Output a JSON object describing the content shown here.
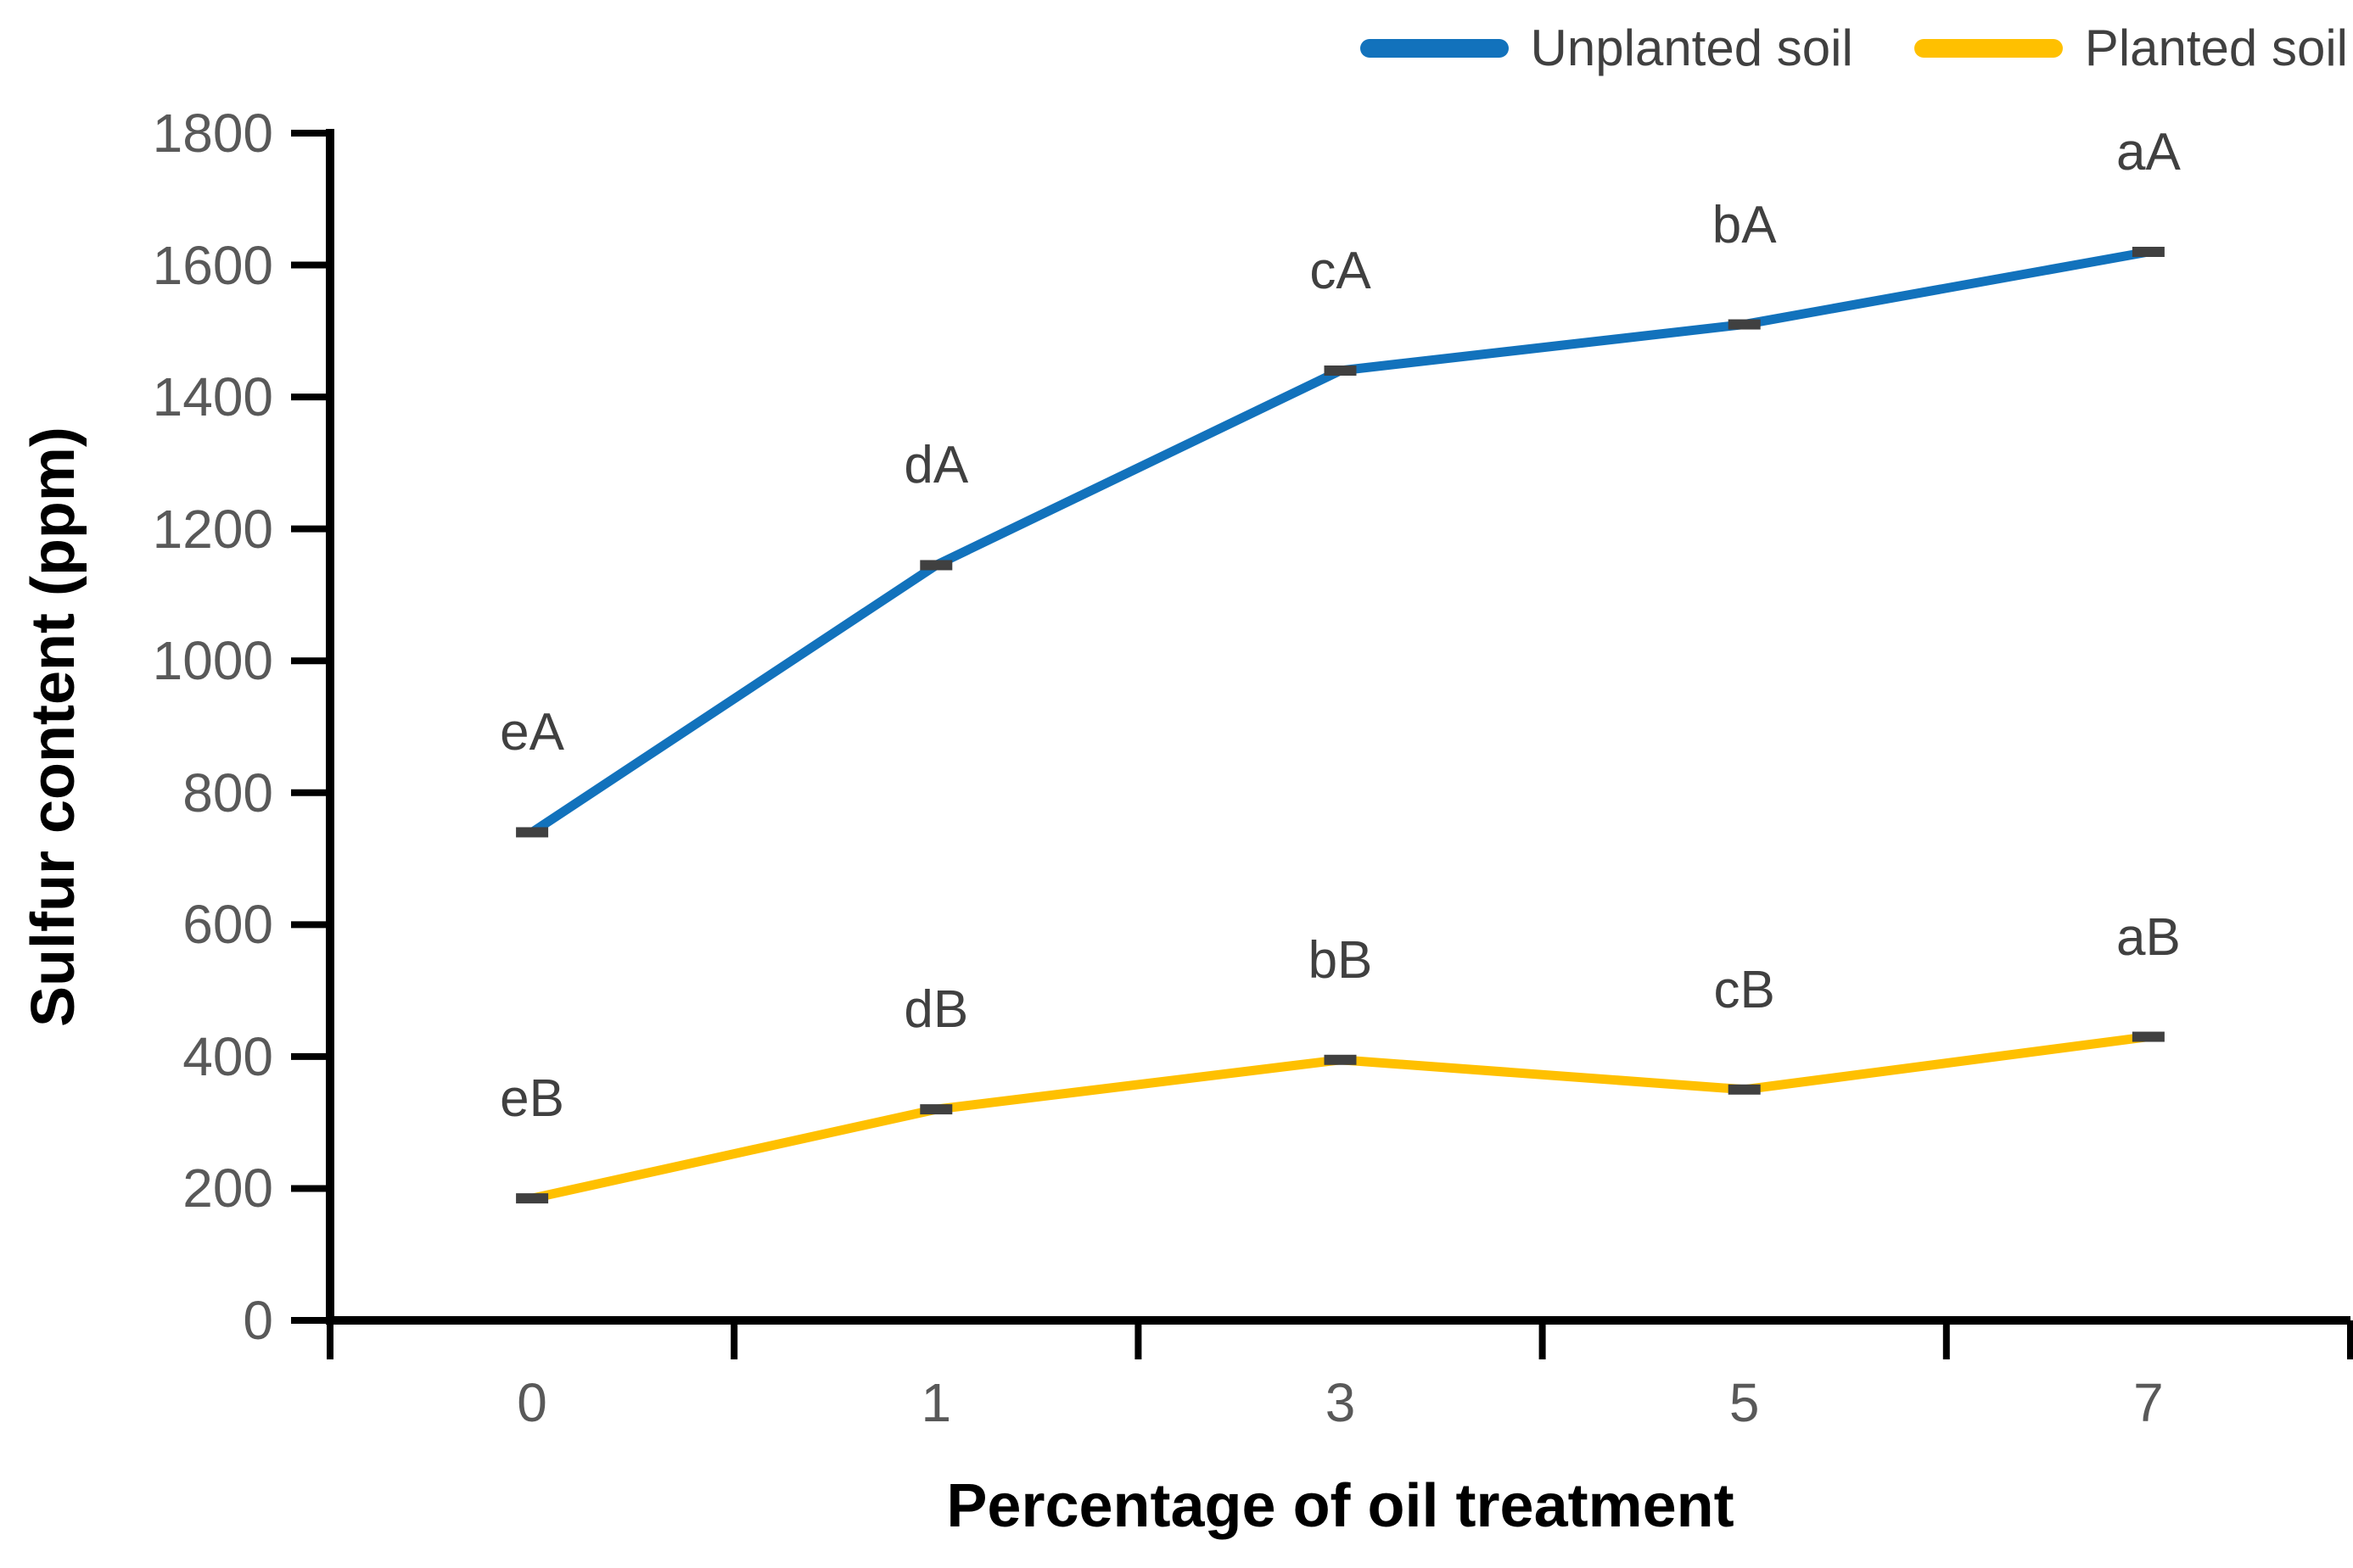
{
  "chart_data": {
    "type": "line",
    "title": "",
    "xlabel": "Percentage of oil treatment",
    "ylabel": "Sulfur content (ppm)",
    "categories": [
      "0",
      "1",
      "3",
      "5",
      "7"
    ],
    "yticks": [
      0,
      200,
      400,
      600,
      800,
      1000,
      1200,
      1400,
      1600,
      1800
    ],
    "ylim": [
      0,
      1800
    ],
    "grid": false,
    "legend_position": "top-right",
    "marker": {
      "shape": "dash",
      "color": "#404040"
    },
    "axis_color": "#000000",
    "tick_label_color": "#595959",
    "series": [
      {
        "name": "Unplanted soil",
        "color": "#1272BC",
        "values": [
          740,
          1145,
          1440,
          1510,
          1620
        ],
        "point_labels": [
          "eA",
          "dA",
          "cA",
          "bA",
          "aA"
        ]
      },
      {
        "name": "Planted soil",
        "color": "#FFC000",
        "values": [
          185,
          320,
          395,
          350,
          430
        ],
        "point_labels": [
          "eB",
          "dB",
          "bB",
          "cB",
          "aB"
        ]
      }
    ]
  }
}
